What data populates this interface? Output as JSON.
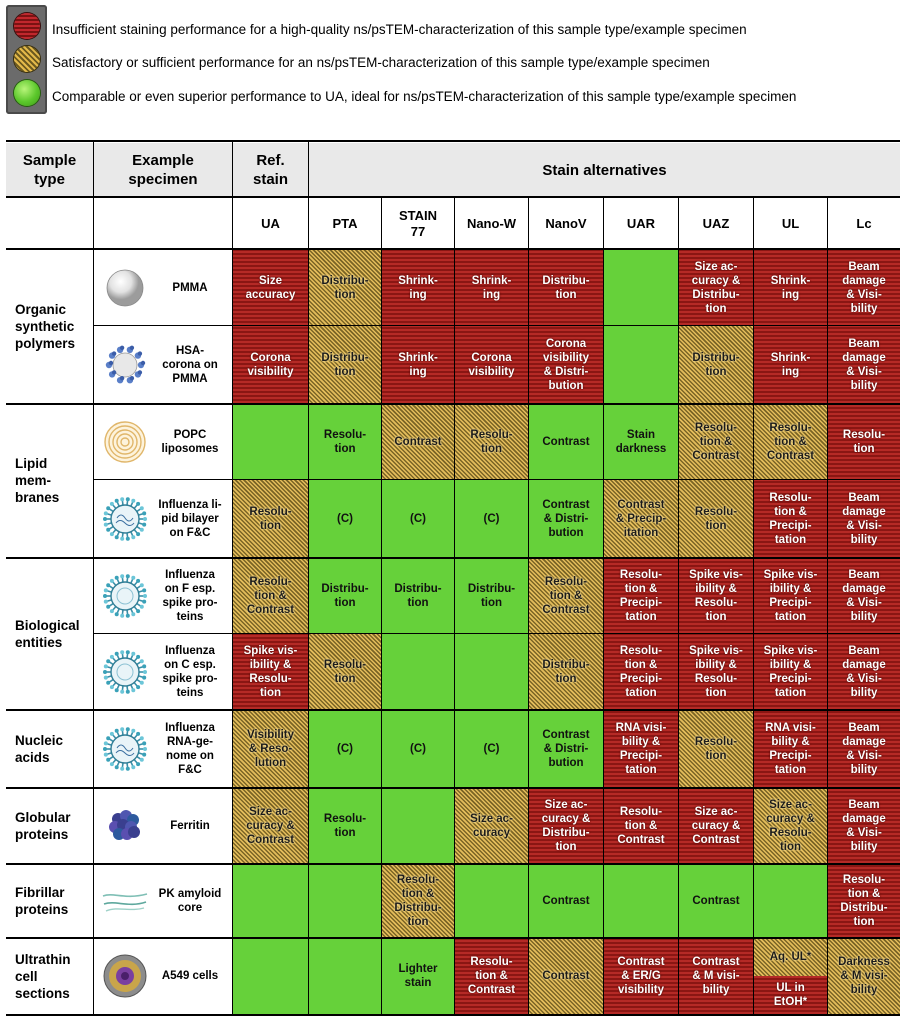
{
  "legend": {
    "red": "Insufficient staining performance for a high-quality ns/psTEM-characterization of this sample type/example specimen",
    "yellow": "Satisfactory or sufficient performance for an ns/psTEM-characterization of this sample type/example specimen",
    "green": "Comparable or even superior performance to UA, ideal for ns/psTEM-characterization of this sample type/example specimen"
  },
  "header": {
    "sample_type": "Sample\ntype",
    "example_specimen": "Example\nspecimen",
    "ref_stain": "Ref.\nstain",
    "stain_alternatives": "Stain alternatives"
  },
  "columns": [
    "UA",
    "PTA",
    "STAIN\n77",
    "Nano-W",
    "NanoV",
    "UAR",
    "UAZ",
    "UL",
    "Lc"
  ],
  "colors": {
    "green": "#66d13a",
    "red": "#b52a26",
    "yellow": "#e4bd5b"
  },
  "groups": [
    {
      "label": "Organic\nsynthetic\npolymers",
      "rows": [
        0,
        1
      ]
    },
    {
      "label": "Lipid\nmem-\nbranes",
      "rows": [
        2,
        3
      ]
    },
    {
      "label": "Biological\nentities",
      "rows": [
        4,
        5
      ]
    },
    {
      "label": "Nucleic\nacids",
      "rows": [
        6
      ]
    },
    {
      "label": "Globular\nproteins",
      "rows": [
        7
      ]
    },
    {
      "label": "Fibrillar\nproteins",
      "rows": [
        8
      ]
    },
    {
      "label": "Ultrathin\ncell\nsections",
      "rows": [
        9
      ]
    }
  ],
  "rows": [
    {
      "specimen": "PMMA",
      "icon": "sphere-icon",
      "cells": [
        [
          "r",
          "Size\naccuracy"
        ],
        [
          "y",
          "Distribu-\ntion"
        ],
        [
          "r",
          "Shrink-\ning"
        ],
        [
          "r",
          "Shrink-\ning"
        ],
        [
          "r",
          "Distribu-\ntion"
        ],
        [
          "g",
          ""
        ],
        [
          "r",
          "Size ac-\ncuracy &\nDistribu-\ntion"
        ],
        [
          "r",
          "Shrink-\ning"
        ],
        [
          "r",
          "Beam\ndamage\n& Visi-\nbility"
        ]
      ]
    },
    {
      "specimen": "HSA-\ncorona on\nPMMA",
      "icon": "protein-corona-icon",
      "cells": [
        [
          "r",
          "Corona\nvisibility"
        ],
        [
          "y",
          "Distribu-\ntion"
        ],
        [
          "r",
          "Shrink-\ning"
        ],
        [
          "r",
          "Corona\nvisibility"
        ],
        [
          "r",
          "Corona\nvisibility\n& Distri-\nbution"
        ],
        [
          "g",
          ""
        ],
        [
          "y",
          "Distribu-\ntion"
        ],
        [
          "r",
          "Shrink-\ning"
        ],
        [
          "r",
          "Beam\ndamage\n& Visi-\nbility"
        ]
      ]
    },
    {
      "specimen": "POPC\nliposomes",
      "icon": "liposome-icon",
      "cells": [
        [
          "g",
          ""
        ],
        [
          "g",
          "Resolu-\ntion"
        ],
        [
          "y",
          "Contrast"
        ],
        [
          "y",
          "Resolu-\ntion"
        ],
        [
          "g",
          "Contrast"
        ],
        [
          "g",
          "Stain\ndarkness"
        ],
        [
          "y",
          "Resolu-\ntion &\nContrast"
        ],
        [
          "y",
          "Resolu-\ntion &\nContrast"
        ],
        [
          "r",
          "Resolu-\ntion"
        ]
      ]
    },
    {
      "specimen": "Influenza li-\npid bilayer\non F&C",
      "icon": "virus-icon",
      "cells": [
        [
          "y",
          "Resolu-\ntion"
        ],
        [
          "g",
          "(C)"
        ],
        [
          "g",
          "(C)"
        ],
        [
          "g",
          "(C)"
        ],
        [
          "g",
          "Contrast\n& Distri-\nbution"
        ],
        [
          "y",
          "Contrast\n& Precip-\nitation"
        ],
        [
          "y",
          "Resolu-\ntion"
        ],
        [
          "r",
          "Resolu-\ntion &\nPrecipi-\ntation"
        ],
        [
          "r",
          "Beam\ndamage\n& Visi-\nbility"
        ]
      ]
    },
    {
      "specimen": "Influenza\non F esp.\nspike pro-\nteins",
      "icon": "virus-spike-icon",
      "cells": [
        [
          "y",
          "Resolu-\ntion &\nContrast"
        ],
        [
          "g",
          "Distribu-\ntion"
        ],
        [
          "g",
          "Distribu-\ntion"
        ],
        [
          "g",
          "Distribu-\ntion"
        ],
        [
          "y",
          "Resolu-\ntion &\nContrast"
        ],
        [
          "r",
          "Resolu-\ntion &\nPrecipi-\ntation"
        ],
        [
          "r",
          "Spike vis-\nibility &\nResolu-\ntion"
        ],
        [
          "r",
          "Spike vis-\nibility &\nPrecipi-\ntation"
        ],
        [
          "r",
          "Beam\ndamage\n& Visi-\nbility"
        ]
      ]
    },
    {
      "specimen": "Influenza\non C esp.\nspike pro-\nteins",
      "icon": "virus-spike-icon",
      "cells": [
        [
          "r",
          "Spike vis-\nibility &\nResolu-\ntion"
        ],
        [
          "y",
          "Resolu-\ntion"
        ],
        [
          "g",
          ""
        ],
        [
          "g",
          ""
        ],
        [
          "y",
          "Distribu-\ntion"
        ],
        [
          "r",
          "Resolu-\ntion &\nPrecipi-\ntation"
        ],
        [
          "r",
          "Spike vis-\nibility &\nResolu-\ntion"
        ],
        [
          "r",
          "Spike vis-\nibility &\nPrecipi-\ntation"
        ],
        [
          "r",
          "Beam\ndamage\n& Visi-\nbility"
        ]
      ]
    },
    {
      "specimen": "Influenza\nRNA-ge-\nnome on\nF&C",
      "icon": "virus-rna-icon",
      "cells": [
        [
          "y",
          "Visibility\n& Reso-\nlution"
        ],
        [
          "g",
          "(C)"
        ],
        [
          "g",
          "(C)"
        ],
        [
          "g",
          "(C)"
        ],
        [
          "g",
          "Contrast\n& Distri-\nbution"
        ],
        [
          "r",
          "RNA visi-\nbility &\nPrecipi-\ntation"
        ],
        [
          "y",
          "Resolu-\ntion"
        ],
        [
          "r",
          "RNA visi-\nbility &\nPrecipi-\ntation"
        ],
        [
          "r",
          "Beam\ndamage\n& Visi-\nbility"
        ]
      ]
    },
    {
      "specimen": "Ferritin",
      "icon": "ferritin-icon",
      "cells": [
        [
          "y",
          "Size ac-\ncuracy &\nContrast"
        ],
        [
          "g",
          "Resolu-\ntion"
        ],
        [
          "g",
          ""
        ],
        [
          "y",
          "Size ac-\ncuracy"
        ],
        [
          "r",
          "Size ac-\ncuracy &\nDistribu-\ntion"
        ],
        [
          "r",
          "Resolu-\ntion &\nContrast"
        ],
        [
          "r",
          "Size ac-\ncuracy &\nContrast"
        ],
        [
          "y",
          "Size ac-\ncuracy &\nResolu-\ntion"
        ],
        [
          "r",
          "Beam\ndamage\n& Visi-\nbility"
        ]
      ]
    },
    {
      "specimen": "PK amyloid\ncore",
      "icon": "amyloid-fibril-icon",
      "cells": [
        [
          "g",
          ""
        ],
        [
          "g",
          ""
        ],
        [
          "y",
          "Resolu-\ntion &\nDistribu-\ntion"
        ],
        [
          "g",
          ""
        ],
        [
          "g",
          "Contrast"
        ],
        [
          "g",
          ""
        ],
        [
          "g",
          "Contrast"
        ],
        [
          "g",
          ""
        ],
        [
          "r",
          "Resolu-\ntion &\nDistribu-\ntion"
        ]
      ]
    },
    {
      "specimen": "A549 cells",
      "icon": "cell-section-icon",
      "cells": [
        [
          "g",
          ""
        ],
        [
          "g",
          ""
        ],
        [
          "g",
          "Lighter\nstain"
        ],
        [
          "r",
          "Resolu-\ntion &\nContrast"
        ],
        [
          "y",
          "Contrast"
        ],
        [
          "r",
          "Contrast\n& ER/G\nvisibility"
        ],
        [
          "r",
          "Contrast\n& M visi-\nbility"
        ],
        [
          "split",
          ""
        ],
        [
          "y",
          "Darkness\n& M visi-\nbility"
        ]
      ],
      "split_cell": {
        "top": [
          "y",
          "Aq. UL*"
        ],
        "bottom": [
          "r",
          "UL in\nEtOH*"
        ]
      }
    }
  ]
}
